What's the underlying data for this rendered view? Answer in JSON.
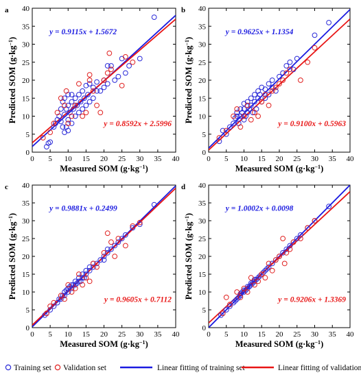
{
  "colors": {
    "training": "#2a2ad8",
    "validation": "#e0201f",
    "training_line": "#1a1ae0",
    "validation_line": "#e81414"
  },
  "legend": {
    "training_set": "Training set",
    "validation_set": "Validation set",
    "training_fit": "Linear fitting of training set",
    "validation_fit": "Linear fitting of validation set"
  },
  "chart_data": [
    {
      "panel": "a",
      "type": "scatter",
      "xlabel": "Measured SOM (g·kg⁻¹)",
      "ylabel": "Predicted SOM (g·kg⁻¹)",
      "xlim": [
        0,
        40
      ],
      "ylim": [
        0,
        40
      ],
      "xticks": [
        0,
        5,
        10,
        15,
        20,
        25,
        30,
        35,
        40
      ],
      "yticks": [
        0,
        5,
        10,
        15,
        20,
        25,
        30,
        35,
        40
      ],
      "training_equation": "y = 0.9115x + 1.5672",
      "validation_equation": "y = 0.8592x + 2.5996",
      "training_fit": {
        "slope": 0.9115,
        "intercept": 1.5672
      },
      "validation_fit": {
        "slope": 0.8592,
        "intercept": 2.5996
      },
      "training": [
        [
          4,
          1.5
        ],
        [
          4.5,
          2.5
        ],
        [
          5,
          2.8
        ],
        [
          6,
          7
        ],
        [
          6.5,
          8
        ],
        [
          7,
          9
        ],
        [
          7.5,
          10
        ],
        [
          8,
          8.5
        ],
        [
          8,
          12
        ],
        [
          8.5,
          7
        ],
        [
          8.5,
          14
        ],
        [
          9,
          5.5
        ],
        [
          9,
          10.5
        ],
        [
          9,
          15
        ],
        [
          9.5,
          7
        ],
        [
          9.5,
          12
        ],
        [
          10,
          6
        ],
        [
          10,
          9
        ],
        [
          10,
          13
        ],
        [
          10,
          16
        ],
        [
          10.5,
          11
        ],
        [
          11,
          8
        ],
        [
          11,
          14
        ],
        [
          11,
          16
        ],
        [
          11.5,
          12
        ],
        [
          12,
          10
        ],
        [
          12,
          15
        ],
        [
          12.5,
          13
        ],
        [
          13,
          11
        ],
        [
          13,
          16
        ],
        [
          13.5,
          14
        ],
        [
          14,
          12
        ],
        [
          14,
          17
        ],
        [
          14.5,
          15
        ],
        [
          15,
          13
        ],
        [
          15,
          18.5
        ],
        [
          15.5,
          16
        ],
        [
          16,
          14
        ],
        [
          16,
          19
        ],
        [
          17,
          15
        ],
        [
          17,
          18
        ],
        [
          18,
          17
        ],
        [
          18,
          19.5
        ],
        [
          19,
          17
        ],
        [
          20,
          18
        ],
        [
          20,
          20
        ],
        [
          21,
          19
        ],
        [
          21,
          24
        ],
        [
          22,
          24
        ],
        [
          23,
          20
        ],
        [
          24,
          21
        ],
        [
          25,
          26
        ],
        [
          26,
          22
        ],
        [
          27,
          24
        ],
        [
          30,
          26
        ],
        [
          34,
          37.5
        ]
      ],
      "validation": [
        [
          3,
          4
        ],
        [
          5,
          5.5
        ],
        [
          6,
          8
        ],
        [
          7,
          11
        ],
        [
          8,
          15
        ],
        [
          9,
          13
        ],
        [
          9.5,
          17
        ],
        [
          10,
          8
        ],
        [
          11,
          10
        ],
        [
          12,
          13
        ],
        [
          13,
          19
        ],
        [
          14,
          10
        ],
        [
          15,
          11
        ],
        [
          16,
          20
        ],
        [
          16,
          21.5
        ],
        [
          17,
          17
        ],
        [
          18,
          13
        ],
        [
          19,
          11
        ],
        [
          20,
          20
        ],
        [
          21,
          22
        ],
        [
          21.5,
          27.5
        ],
        [
          22,
          23
        ],
        [
          25,
          18.5
        ],
        [
          26,
          26.5
        ],
        [
          28,
          25
        ]
      ]
    },
    {
      "panel": "b",
      "type": "scatter",
      "xlabel": "Measured SOM (g·kg⁻¹)",
      "ylabel": "Predicted SOM (g·kg⁻¹)",
      "xlim": [
        0,
        40
      ],
      "ylim": [
        0,
        40
      ],
      "xticks": [
        0,
        5,
        10,
        15,
        20,
        25,
        30,
        35,
        40
      ],
      "yticks": [
        0,
        5,
        10,
        15,
        20,
        25,
        30,
        35,
        40
      ],
      "training_equation": "y = 0.9625x + 1.1354",
      "validation_equation": "y = 0.9100x + 0.5963",
      "training_fit": {
        "slope": 0.9625,
        "intercept": 1.1354
      },
      "validation_fit": {
        "slope": 0.91,
        "intercept": 0.5963
      },
      "training": [
        [
          3,
          3
        ],
        [
          4,
          6
        ],
        [
          5,
          5
        ],
        [
          6,
          7
        ],
        [
          7,
          8
        ],
        [
          7.5,
          9.5
        ],
        [
          8,
          10
        ],
        [
          8,
          11
        ],
        [
          8.5,
          8
        ],
        [
          9,
          10
        ],
        [
          9,
          12
        ],
        [
          9.5,
          11
        ],
        [
          10,
          9
        ],
        [
          10,
          12
        ],
        [
          10,
          13.5
        ],
        [
          10.5,
          10
        ],
        [
          11,
          11
        ],
        [
          11,
          14
        ],
        [
          11.5,
          12
        ],
        [
          12,
          13
        ],
        [
          12,
          15
        ],
        [
          12.5,
          11
        ],
        [
          13,
          14
        ],
        [
          13,
          16
        ],
        [
          13.5,
          12
        ],
        [
          14,
          15
        ],
        [
          14,
          17
        ],
        [
          14.5,
          16
        ],
        [
          15,
          14
        ],
        [
          15,
          18
        ],
        [
          16,
          15
        ],
        [
          16,
          17.5
        ],
        [
          17,
          16
        ],
        [
          17,
          19
        ],
        [
          18,
          18
        ],
        [
          18,
          20
        ],
        [
          19,
          17
        ],
        [
          20,
          21
        ],
        [
          21,
          22
        ],
        [
          22,
          24
        ],
        [
          23,
          25
        ],
        [
          24,
          23
        ],
        [
          25,
          26
        ],
        [
          30,
          32.5
        ],
        [
          34,
          36
        ]
      ],
      "validation": [
        [
          3,
          4
        ],
        [
          5,
          6
        ],
        [
          7,
          10
        ],
        [
          8,
          12
        ],
        [
          9,
          7
        ],
        [
          10,
          10
        ],
        [
          11,
          13
        ],
        [
          12,
          9
        ],
        [
          13,
          11
        ],
        [
          14,
          10
        ],
        [
          15,
          14
        ],
        [
          16,
          16
        ],
        [
          17,
          13
        ],
        [
          18,
          17
        ],
        [
          19,
          18
        ],
        [
          20,
          19
        ],
        [
          21,
          20
        ],
        [
          22,
          22
        ],
        [
          23,
          23
        ],
        [
          26,
          20
        ],
        [
          28,
          25
        ],
        [
          30,
          29
        ]
      ]
    },
    {
      "panel": "c",
      "type": "scatter",
      "xlabel": "Measured SOM (g·kg⁻¹)",
      "ylabel": "Predicted SOM (g·kg⁻¹)",
      "xlim": [
        0,
        40
      ],
      "ylim": [
        0,
        40
      ],
      "xticks": [
        0,
        5,
        10,
        15,
        20,
        25,
        30,
        35,
        40
      ],
      "yticks": [
        0,
        5,
        10,
        15,
        20,
        25,
        30,
        35,
        40
      ],
      "training_equation": "y = 0.9881x + 0.2499",
      "validation_equation": "y = 0.9605x + 0.7112",
      "training_fit": {
        "slope": 0.9881,
        "intercept": 0.2499
      },
      "validation_fit": {
        "slope": 0.9605,
        "intercept": 0.7112
      },
      "training": [
        [
          3.5,
          3.5
        ],
        [
          4,
          4
        ],
        [
          5,
          5
        ],
        [
          6,
          6
        ],
        [
          7,
          7
        ],
        [
          7.5,
          8
        ],
        [
          8,
          8
        ],
        [
          8.5,
          9
        ],
        [
          9,
          9
        ],
        [
          9,
          10
        ],
        [
          9.5,
          10.5
        ],
        [
          10,
          10
        ],
        [
          10,
          11
        ],
        [
          10.5,
          11.5
        ],
        [
          11,
          11
        ],
        [
          11,
          12
        ],
        [
          11.5,
          12
        ],
        [
          12,
          12
        ],
        [
          12,
          13
        ],
        [
          12.5,
          12.5
        ],
        [
          13,
          13
        ],
        [
          13,
          14
        ],
        [
          13.5,
          13
        ],
        [
          14,
          14
        ],
        [
          14,
          15
        ],
        [
          14.5,
          14
        ],
        [
          15,
          15
        ],
        [
          15,
          16
        ],
        [
          16,
          16
        ],
        [
          16,
          17
        ],
        [
          17,
          17
        ],
        [
          17,
          18
        ],
        [
          18,
          18
        ],
        [
          19,
          19
        ],
        [
          20,
          19
        ],
        [
          20,
          20
        ],
        [
          21,
          21
        ],
        [
          21,
          22
        ],
        [
          22,
          22
        ],
        [
          23,
          23
        ],
        [
          24,
          24
        ],
        [
          25,
          25
        ],
        [
          26,
          26
        ],
        [
          28,
          28
        ],
        [
          30,
          29
        ],
        [
          34,
          34.5
        ]
      ],
      "validation": [
        [
          4,
          4
        ],
        [
          5,
          6
        ],
        [
          6,
          7
        ],
        [
          8,
          9
        ],
        [
          9,
          8
        ],
        [
          10,
          12
        ],
        [
          11,
          10
        ],
        [
          12,
          11
        ],
        [
          13,
          15
        ],
        [
          14,
          12
        ],
        [
          15,
          14
        ],
        [
          16,
          13
        ],
        [
          17,
          18
        ],
        [
          18,
          17
        ],
        [
          20,
          21
        ],
        [
          21,
          26.5
        ],
        [
          22,
          24
        ],
        [
          23,
          20
        ],
        [
          24,
          25
        ],
        [
          26,
          23
        ],
        [
          28,
          28.5
        ],
        [
          30,
          29.5
        ]
      ]
    },
    {
      "panel": "d",
      "type": "scatter",
      "xlabel": "Measured SOM (g·kg⁻¹)",
      "ylabel": "Predicted SOM (g·kg⁻¹)",
      "xlim": [
        0,
        40
      ],
      "ylim": [
        0,
        40
      ],
      "xticks": [
        0,
        5,
        10,
        15,
        20,
        25,
        30,
        35,
        40
      ],
      "yticks": [
        0,
        5,
        10,
        15,
        20,
        25,
        30,
        35,
        40
      ],
      "training_equation": "y = 1.0002x + 0.0098",
      "validation_equation": "y = 0.9206x + 1.3369",
      "training_fit": {
        "slope": 1.0002,
        "intercept": 0.0098
      },
      "validation_fit": {
        "slope": 0.9206,
        "intercept": 1.3369
      },
      "training": [
        [
          3.5,
          3.5
        ],
        [
          4,
          4
        ],
        [
          5,
          5
        ],
        [
          6,
          6
        ],
        [
          7,
          7
        ],
        [
          7.5,
          7.5
        ],
        [
          8,
          8
        ],
        [
          8.5,
          8.5
        ],
        [
          9,
          9
        ],
        [
          9,
          9.5
        ],
        [
          9.5,
          10
        ],
        [
          10,
          10
        ],
        [
          10,
          10.5
        ],
        [
          10.5,
          10.5
        ],
        [
          11,
          11
        ],
        [
          11,
          11.5
        ],
        [
          11.5,
          11.5
        ],
        [
          12,
          12
        ],
        [
          12,
          12.5
        ],
        [
          12.5,
          12.5
        ],
        [
          13,
          13
        ],
        [
          13,
          13.5
        ],
        [
          13.5,
          13.5
        ],
        [
          14,
          14
        ],
        [
          14.5,
          14.5
        ],
        [
          15,
          15
        ],
        [
          15.5,
          15.5
        ],
        [
          16,
          16
        ],
        [
          16.5,
          16.5
        ],
        [
          17,
          17
        ],
        [
          18,
          18
        ],
        [
          19,
          19
        ],
        [
          20,
          20
        ],
        [
          21,
          21
        ],
        [
          22,
          22
        ],
        [
          23,
          23
        ],
        [
          24,
          24
        ],
        [
          25,
          25
        ],
        [
          26,
          26
        ],
        [
          28,
          28
        ],
        [
          30,
          30
        ],
        [
          34,
          34
        ]
      ],
      "validation": [
        [
          4,
          4
        ],
        [
          5,
          8.5
        ],
        [
          6,
          6.5
        ],
        [
          8,
          10
        ],
        [
          9,
          8.5
        ],
        [
          10,
          11
        ],
        [
          11,
          10
        ],
        [
          12,
          14
        ],
        [
          13,
          12
        ],
        [
          14,
          13
        ],
        [
          15,
          15
        ],
        [
          16,
          14
        ],
        [
          17,
          18
        ],
        [
          18,
          16
        ],
        [
          19,
          19
        ],
        [
          20,
          20
        ],
        [
          21,
          25
        ],
        [
          21.5,
          18
        ],
        [
          22,
          21
        ],
        [
          23,
          22
        ],
        [
          24,
          24
        ],
        [
          26,
          25
        ],
        [
          28,
          28
        ],
        [
          30,
          30
        ]
      ]
    }
  ]
}
